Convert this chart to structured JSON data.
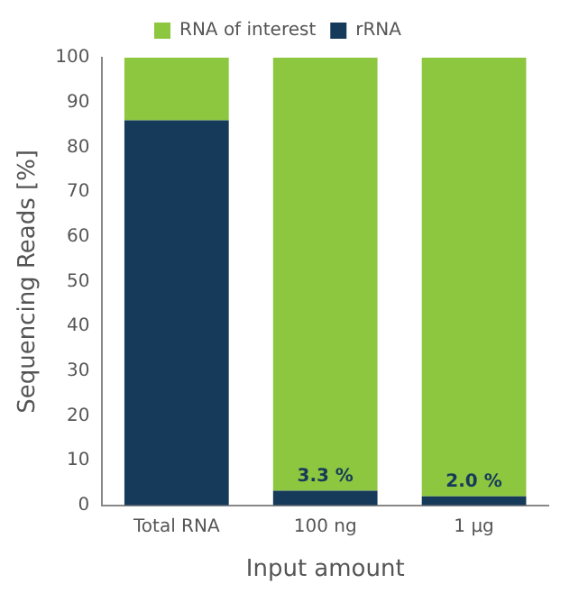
{
  "chart_data": {
    "type": "bar",
    "stacked": true,
    "xlabel": "Input amount",
    "ylabel": "Sequencing Reads [%]",
    "categories": [
      "Total RNA",
      "100 ng",
      "1 µg"
    ],
    "series": [
      {
        "name": "rRNA",
        "color": "#163a5a",
        "values": [
          86,
          3.3,
          2.0
        ],
        "value_labels": [
          null,
          "3.3 %",
          "2.0 %"
        ]
      },
      {
        "name": "RNA of interest",
        "color": "#8dc63f",
        "values": [
          14,
          96.7,
          98.0
        ]
      }
    ],
    "ylim": [
      0,
      100
    ],
    "yticks": [
      0,
      10,
      20,
      30,
      40,
      50,
      60,
      70,
      80,
      90,
      100
    ],
    "grid": false,
    "legend": "top"
  }
}
